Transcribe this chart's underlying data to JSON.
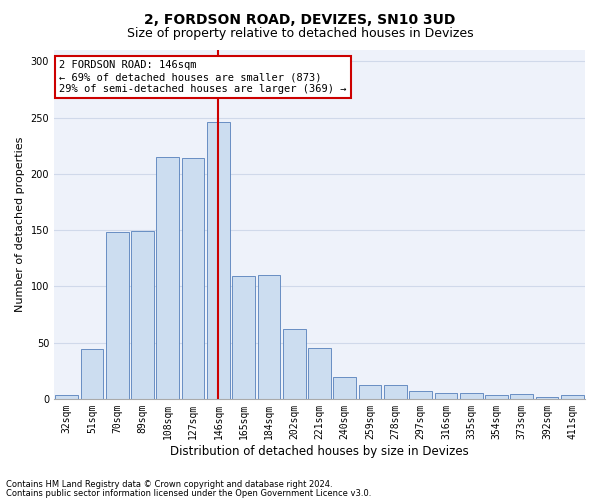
{
  "title": "2, FORDSON ROAD, DEVIZES, SN10 3UD",
  "subtitle": "Size of property relative to detached houses in Devizes",
  "xlabel": "Distribution of detached houses by size in Devizes",
  "ylabel": "Number of detached properties",
  "categories": [
    "32sqm",
    "51sqm",
    "70sqm",
    "89sqm",
    "108sqm",
    "127sqm",
    "146sqm",
    "165sqm",
    "184sqm",
    "202sqm",
    "221sqm",
    "240sqm",
    "259sqm",
    "278sqm",
    "297sqm",
    "316sqm",
    "335sqm",
    "354sqm",
    "373sqm",
    "392sqm",
    "411sqm"
  ],
  "values": [
    3,
    44,
    148,
    149,
    215,
    214,
    246,
    109,
    110,
    62,
    45,
    19,
    12,
    12,
    7,
    5,
    5,
    3,
    4,
    2,
    3
  ],
  "bar_color": "#ccddf0",
  "bar_edge_color": "#5580bb",
  "vline_x_index": 6,
  "vline_color": "#cc0000",
  "annotation_text": "2 FORDSON ROAD: 146sqm\n← 69% of detached houses are smaller (873)\n29% of semi-detached houses are larger (369) →",
  "annotation_box_color": "#ffffff",
  "annotation_box_edge_color": "#cc0000",
  "footnote1": "Contains HM Land Registry data © Crown copyright and database right 2024.",
  "footnote2": "Contains public sector information licensed under the Open Government Licence v3.0.",
  "ylim": [
    0,
    310
  ],
  "yticks": [
    0,
    50,
    100,
    150,
    200,
    250,
    300
  ],
  "grid_color": "#d0d9ea",
  "background_color": "#eef2fa",
  "title_fontsize": 10,
  "subtitle_fontsize": 9,
  "tick_fontsize": 7,
  "ylabel_fontsize": 8,
  "xlabel_fontsize": 8.5,
  "footnote_fontsize": 6,
  "annotation_fontsize": 7.5
}
